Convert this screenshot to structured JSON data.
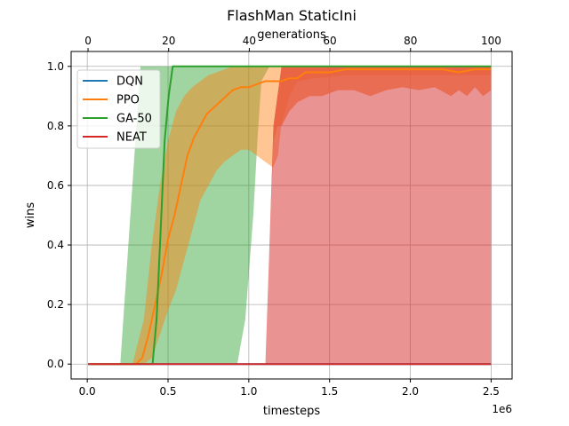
{
  "chart_data": {
    "type": "line",
    "title": "FlashMan StaticIni",
    "xlabel": "timesteps",
    "xlabel_top": "generations",
    "ylabel": "wins",
    "x_offset_text": "1e6",
    "xlim": [
      -0.1,
      2.63
    ],
    "ylim": [
      -0.05,
      1.05
    ],
    "xlim_top": [
      -4.2,
      105.2
    ],
    "x_ticks": [
      0.0,
      0.5,
      1.0,
      1.5,
      2.0,
      2.5
    ],
    "x_tick_labels": [
      "0.0",
      "0.5",
      "1.0",
      "1.5",
      "2.0",
      "2.5"
    ],
    "x_top_ticks": [
      0,
      20,
      40,
      60,
      80,
      100
    ],
    "x_top_tick_labels": [
      "0",
      "20",
      "40",
      "60",
      "80",
      "100"
    ],
    "y_ticks": [
      0.0,
      0.2,
      0.4,
      0.6,
      0.8,
      1.0
    ],
    "y_tick_labels": [
      "0.0",
      "0.2",
      "0.4",
      "0.6",
      "0.8",
      "1.0"
    ],
    "grid": true,
    "legend_position": "upper-left",
    "legend": [
      "DQN",
      "PPO",
      "GA-50",
      "NEAT"
    ],
    "series": [
      {
        "name": "DQN",
        "color": "#1f77b4",
        "axis": "timesteps",
        "x": [
          0.02,
          2.5
        ],
        "y": [
          0.0,
          0.0
        ]
      },
      {
        "name": "PPO",
        "color": "#ff7f0e",
        "axis": "timesteps",
        "x": [
          0.02,
          0.3,
          0.34,
          0.38,
          0.42,
          0.46,
          0.5,
          0.54,
          0.58,
          0.62,
          0.66,
          0.7,
          0.74,
          0.78,
          0.82,
          0.86,
          0.9,
          0.95,
          1.0,
          1.05,
          1.1,
          1.15,
          1.2,
          1.25,
          1.3,
          1.35,
          1.4,
          1.5,
          1.6,
          1.8,
          2.0,
          2.2,
          2.3,
          2.4,
          2.45,
          2.5
        ],
        "y": [
          0.0,
          0.0,
          0.02,
          0.1,
          0.2,
          0.3,
          0.42,
          0.5,
          0.6,
          0.7,
          0.76,
          0.8,
          0.84,
          0.86,
          0.88,
          0.9,
          0.92,
          0.93,
          0.93,
          0.94,
          0.95,
          0.95,
          0.95,
          0.96,
          0.96,
          0.98,
          0.98,
          0.98,
          0.99,
          0.99,
          0.99,
          0.99,
          0.98,
          0.99,
          0.99,
          0.99
        ],
        "band_x": [
          0.28,
          0.35,
          0.4,
          0.45,
          0.5,
          0.55,
          0.6,
          0.65,
          0.7,
          0.75,
          0.8,
          0.85,
          0.9,
          0.95,
          1.0,
          1.05,
          1.1,
          1.15,
          1.18,
          1.2,
          1.25,
          1.3,
          1.4,
          1.6,
          2.0,
          2.5
        ],
        "band_lower": [
          0.0,
          0.0,
          0.02,
          0.1,
          0.18,
          0.25,
          0.35,
          0.45,
          0.55,
          0.6,
          0.65,
          0.68,
          0.7,
          0.72,
          0.72,
          0.7,
          0.68,
          0.66,
          0.7,
          0.8,
          0.9,
          0.95,
          0.96,
          0.97,
          0.97,
          0.97
        ],
        "band_upper": [
          0.0,
          0.15,
          0.4,
          0.6,
          0.75,
          0.85,
          0.9,
          0.93,
          0.95,
          0.97,
          0.98,
          0.99,
          1.0,
          1.0,
          1.0,
          1.0,
          1.0,
          1.0,
          1.0,
          1.0,
          1.0,
          1.0,
          1.0,
          1.0,
          1.0,
          1.0
        ]
      },
      {
        "name": "GA-50",
        "color": "#2ca02c",
        "axis": "generations",
        "x": [
          0,
          16,
          17,
          18,
          19,
          20,
          21,
          100
        ],
        "y": [
          0.0,
          0.0,
          0.15,
          0.45,
          0.75,
          0.9,
          1.0,
          1.0
        ],
        "band_x": [
          8,
          11,
          13,
          15,
          17,
          19,
          21,
          37,
          39,
          41,
          42,
          43,
          45,
          47,
          100
        ],
        "band_lower": [
          0.0,
          0.0,
          0.0,
          0.0,
          0.0,
          0.0,
          0.0,
          0.0,
          0.15,
          0.5,
          0.75,
          0.95,
          1.0,
          1.0,
          1.0
        ],
        "band_upper": [
          0.0,
          0.6,
          1.0,
          1.0,
          1.0,
          1.0,
          1.0,
          1.0,
          1.0,
          1.0,
          1.0,
          1.0,
          1.0,
          1.0,
          1.0
        ]
      },
      {
        "name": "NEAT",
        "color": "#d62728",
        "axis": "generations",
        "x": [
          0,
          100
        ],
        "y": [
          0.0,
          0.0
        ],
        "band_x": [
          44,
          45,
          46,
          47,
          48,
          50,
          52,
          55,
          58,
          62,
          66,
          70,
          74,
          78,
          82,
          86,
          90,
          92,
          94,
          96,
          98,
          100
        ],
        "band_lower": [
          0.0,
          0.0,
          0.0,
          0.0,
          0.0,
          0.0,
          0.0,
          0.0,
          0.0,
          0.0,
          0.0,
          0.0,
          0.0,
          0.0,
          0.0,
          0.0,
          0.0,
          0.0,
          0.0,
          0.0,
          0.0,
          0.0
        ],
        "band_upper": [
          0.0,
          0.4,
          0.8,
          0.9,
          1.0,
          1.0,
          1.0,
          1.0,
          1.0,
          1.0,
          1.0,
          1.0,
          1.0,
          1.0,
          1.0,
          1.0,
          1.0,
          1.0,
          1.0,
          1.0,
          1.0,
          1.0
        ],
        "band_inner_lower": [
          0.0,
          0.4,
          0.75,
          0.8,
          0.8,
          0.85,
          0.88,
          0.9,
          0.9,
          0.92,
          0.92,
          0.9,
          0.92,
          0.93,
          0.92,
          0.93,
          0.9,
          0.92,
          0.9,
          0.93,
          0.9,
          0.92
        ]
      }
    ]
  }
}
